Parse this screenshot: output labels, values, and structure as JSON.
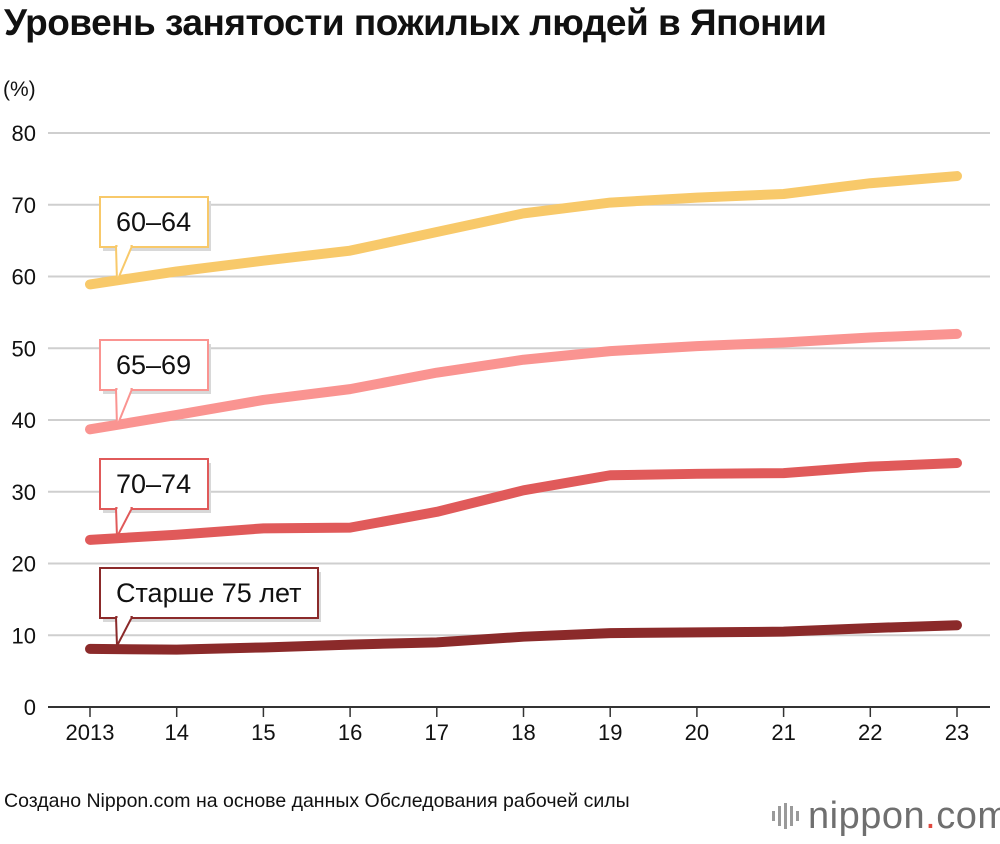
{
  "chart_data": {
    "type": "line",
    "title": "Уровень занятости пожилых людей в Японии",
    "ylabel": "(%)",
    "xlabel": "",
    "ylim": [
      0,
      80
    ],
    "yticks": [
      0,
      10,
      20,
      30,
      40,
      50,
      60,
      70,
      80
    ],
    "grid": true,
    "x": [
      "2013",
      "14",
      "15",
      "16",
      "17",
      "18",
      "19",
      "20",
      "21",
      "22",
      "23"
    ],
    "series": [
      {
        "name": "60–64",
        "color": "#f8c96a",
        "values": [
          58.9,
          60.7,
          62.2,
          63.6,
          66.2,
          68.8,
          70.3,
          71.0,
          71.5,
          73.0,
          74.0
        ]
      },
      {
        "name": "65–69",
        "color": "#fa9491",
        "values": [
          38.7,
          40.7,
          42.8,
          44.3,
          46.6,
          48.4,
          49.6,
          50.3,
          50.8,
          51.5,
          52.0
        ]
      },
      {
        "name": "70–74",
        "color": "#e05a5a",
        "values": [
          23.3,
          24.0,
          24.9,
          25.0,
          27.2,
          30.2,
          32.3,
          32.5,
          32.6,
          33.5,
          34.0
        ]
      },
      {
        "name": "Старше 75 лет",
        "color": "#8b2a2a",
        "values": [
          8.1,
          8.0,
          8.3,
          8.7,
          9.0,
          9.8,
          10.3,
          10.4,
          10.5,
          11.0,
          11.4
        ]
      }
    ]
  },
  "source": "Создано Nippon.com на основе данных Обследования рабочей силы",
  "brand": {
    "name": "nippon",
    "dot": ".",
    "tld": "com",
    "icon": "nippon-logo-icon"
  }
}
